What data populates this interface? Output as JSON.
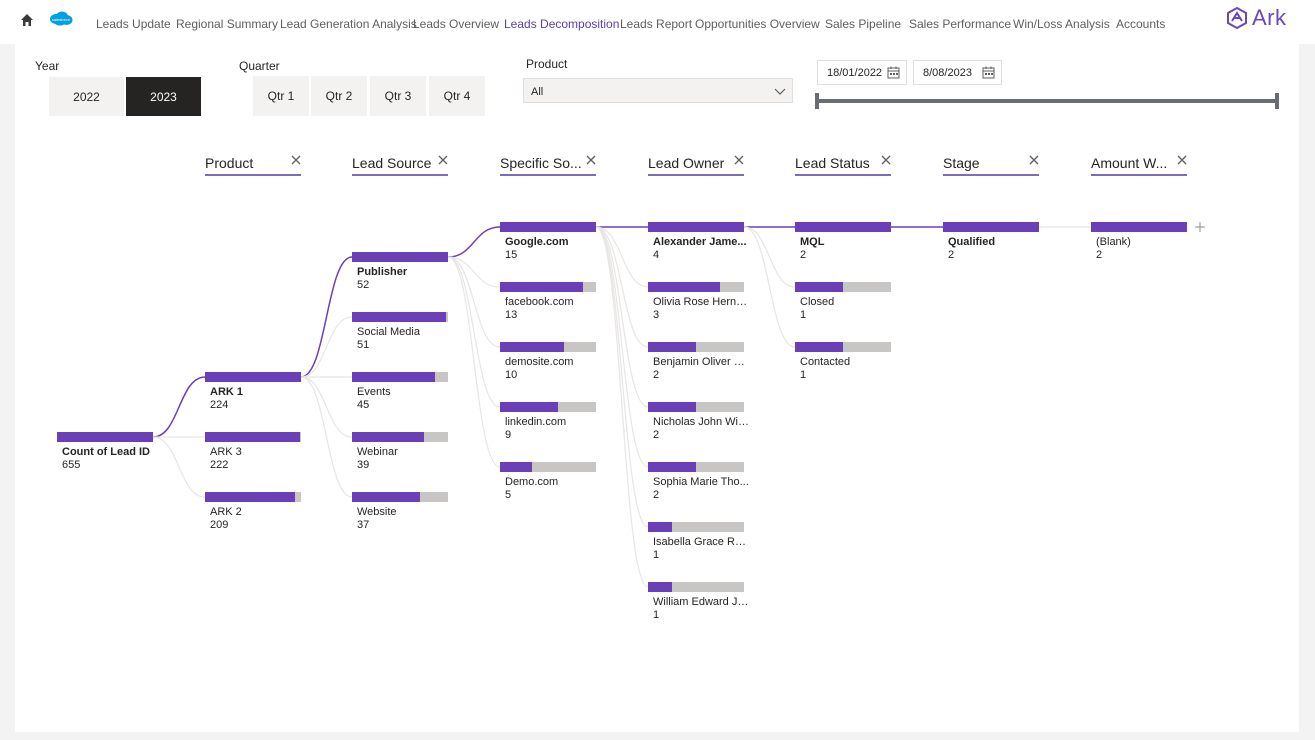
{
  "nav": {
    "items": [
      {
        "label": "Leads Update",
        "active": false
      },
      {
        "label": "Regional Summary",
        "active": false
      },
      {
        "label": "Lead Generation Analysis",
        "active": false
      },
      {
        "label": "Leads Overview",
        "active": false
      },
      {
        "label": "Leads Decomposition",
        "active": true
      },
      {
        "label": "Leads Report",
        "active": false
      },
      {
        "label": "Opportunities Overview",
        "active": false
      },
      {
        "label": "Sales Pipeline",
        "active": false
      },
      {
        "label": "Sales Performance",
        "active": false
      },
      {
        "label": "Win/Loss Analysis",
        "active": false
      },
      {
        "label": "Accounts",
        "active": false
      }
    ],
    "brand": "Ark",
    "salesforce_logo_text": "salesforce"
  },
  "filters": {
    "year": {
      "title": "Year",
      "options": [
        "2022",
        "2023"
      ],
      "selected": "2023"
    },
    "quarter": {
      "title": "Quarter",
      "options": [
        "Qtr 1",
        "Qtr 2",
        "Qtr 3",
        "Qtr 4"
      ]
    },
    "product": {
      "title": "Product",
      "value": "All"
    },
    "date_range": {
      "start": "18/01/2022",
      "end": "8/08/2023"
    }
  },
  "tree": {
    "headers": [
      "Product",
      "Lead Source",
      "Specific So...",
      "Lead Owner",
      "Lead Status",
      "Stage",
      "Amount W..."
    ],
    "root": {
      "label": "Count of Lead ID",
      "value": 655
    },
    "columns": [
      [
        {
          "label": "ARK 1",
          "value": 224,
          "expanded": true
        },
        {
          "label": "ARK 3",
          "value": 222
        },
        {
          "label": "ARK 2",
          "value": 209
        }
      ],
      [
        {
          "label": "Publisher",
          "value": 52,
          "expanded": true
        },
        {
          "label": "Social Media",
          "value": 51
        },
        {
          "label": "Events",
          "value": 45
        },
        {
          "label": "Webinar",
          "value": 39
        },
        {
          "label": "Website",
          "value": 37
        }
      ],
      [
        {
          "label": "Google.com",
          "value": 15,
          "expanded": true
        },
        {
          "label": "facebook.com",
          "value": 13
        },
        {
          "label": "demosite.com",
          "value": 10
        },
        {
          "label": "linkedin.com",
          "value": 9
        },
        {
          "label": "Demo.com",
          "value": 5
        }
      ],
      [
        {
          "label": "Alexander Jame...",
          "value": 4,
          "expanded": true
        },
        {
          "label": "Olivia Rose Herna...",
          "value": 3
        },
        {
          "label": "Benjamin Oliver D...",
          "value": 2
        },
        {
          "label": "Nicholas John Wil...",
          "value": 2
        },
        {
          "label": "Sophia Marie Tho...",
          "value": 2
        },
        {
          "label": "Isabella Grace Ra...",
          "value": 1
        },
        {
          "label": "William Edward Jo...",
          "value": 1
        }
      ],
      [
        {
          "label": "MQL",
          "value": 2,
          "expanded": true
        },
        {
          "label": "Closed",
          "value": 1
        },
        {
          "label": "Contacted",
          "value": 1
        }
      ],
      [
        {
          "label": "Qualified",
          "value": 2,
          "expanded": true
        }
      ],
      [
        {
          "label": "(Blank)",
          "value": 2
        }
      ]
    ]
  },
  "colors": {
    "accent": "#6a3fb8",
    "bar_bg": "#c8c6c4",
    "link": "#6a3fb8"
  },
  "icons": [
    "home-icon",
    "salesforce-logo",
    "ark-logo-icon",
    "chevron-down-icon",
    "calendar-icon",
    "close-icon",
    "plus-icon"
  ]
}
